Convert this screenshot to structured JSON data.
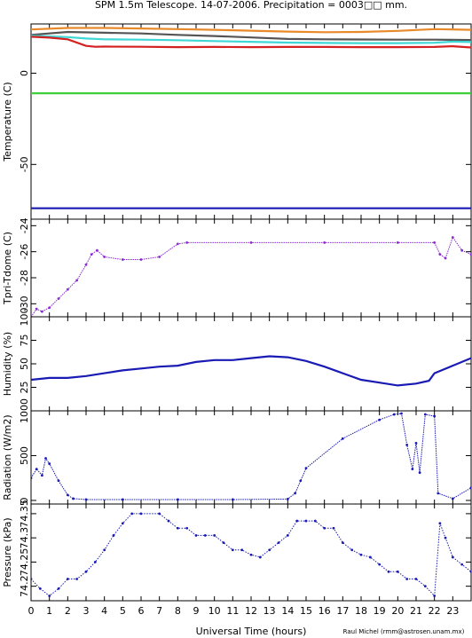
{
  "title": "SPM 1.5m Telescope. 14-07-2006. Precipitation = 0003□□ mm.",
  "credit": "Raul Michel (rmm@astrosen.unam.mx)",
  "colors": {
    "frame": "#000000",
    "orange": "#e8892a",
    "gray": "#555555",
    "cyan": "#3fd6d6",
    "red": "#d42020",
    "green": "#3ccf3c",
    "blue": "#1a1ab4",
    "purple": "#8a2ad0",
    "dots": "#2a2ad8"
  },
  "chart_data": [
    {
      "type": "line",
      "name": "temperature",
      "ylabel": "Temperature (C)",
      "xlim": [
        0,
        24
      ],
      "ylim": [
        -80,
        27
      ],
      "yticks": [
        0,
        -50
      ],
      "series": [
        {
          "color": "orange",
          "x": [
            0,
            2,
            4,
            6,
            8,
            10,
            12,
            14,
            16,
            18,
            20,
            22,
            24
          ],
          "y": [
            24,
            24.8,
            24.8,
            24.5,
            24.2,
            23.8,
            23.3,
            22.8,
            22.5,
            22.6,
            23.2,
            24.2,
            23.8
          ]
        },
        {
          "color": "gray",
          "x": [
            0,
            2,
            4,
            6,
            8,
            10,
            12,
            14,
            16,
            18,
            20,
            22,
            24
          ],
          "y": [
            21,
            22.6,
            22.2,
            21.8,
            21,
            20.4,
            19.6,
            18.8,
            18.6,
            18.5,
            18.4,
            18.4,
            18.2
          ]
        },
        {
          "color": "cyan",
          "x": [
            0,
            1,
            2,
            3,
            4,
            6,
            8,
            10,
            12,
            14,
            16,
            18,
            20,
            22,
            23,
            24
          ],
          "y": [
            20.5,
            20.2,
            19.8,
            19,
            18.6,
            18.4,
            18.1,
            17.6,
            17.2,
            16.8,
            16.6,
            16.5,
            16.5,
            16.7,
            17.3,
            17.1
          ]
        },
        {
          "color": "red",
          "x": [
            0,
            1,
            2,
            3,
            3.5,
            4,
            6,
            8,
            10,
            12,
            14,
            16,
            18,
            20,
            22,
            23,
            24
          ],
          "y": [
            20,
            19.5,
            18.6,
            15,
            14.5,
            14.6,
            14.5,
            14.3,
            14.4,
            14.3,
            14.4,
            14.4,
            14.3,
            14.3,
            14.4,
            14.8,
            14.1
          ]
        },
        {
          "color": "green",
          "x": [
            0,
            24
          ],
          "y": [
            -11,
            -11
          ]
        },
        {
          "color": "blue",
          "x": [
            0,
            24
          ],
          "y": [
            -74,
            -74
          ]
        }
      ]
    },
    {
      "type": "scatter",
      "name": "tpri-tdome",
      "ylabel": "Tpri-Tdome (C)",
      "xlim": [
        0,
        24
      ],
      "ylim": [
        -31,
        -23.5
      ],
      "yticks": [
        -30,
        -28,
        -26,
        -24
      ],
      "series": [
        {
          "color": "purple",
          "x": [
            0,
            0.3,
            0.6,
            1,
            1.5,
            2,
            2.5,
            3,
            3.3,
            3.6,
            4,
            5,
            6,
            7,
            8,
            8.5,
            12,
            16,
            20,
            22,
            22.3,
            22.6,
            23,
            23.5,
            24
          ],
          "y": [
            -31,
            -30.4,
            -30.6,
            -30.3,
            -29.6,
            -28.9,
            -28.2,
            -27.0,
            -26.2,
            -25.9,
            -26.4,
            -26.6,
            -26.6,
            -26.4,
            -25.4,
            -25.3,
            -25.3,
            -25.3,
            -25.3,
            -25.3,
            -26.2,
            -26.5,
            -24.9,
            -25.9,
            -26.2
          ]
        }
      ]
    },
    {
      "type": "line",
      "name": "humidity",
      "ylabel": "Humidity (%)",
      "xlim": [
        0,
        24
      ],
      "ylim": [
        0,
        100
      ],
      "yticks": [
        25,
        50,
        75,
        100
      ],
      "series": [
        {
          "color": "blue",
          "x": [
            0,
            1,
            2,
            3,
            4,
            5,
            6,
            7,
            8,
            9,
            10,
            11,
            12,
            13,
            14,
            15,
            16,
            17,
            18,
            19,
            20,
            21,
            21.7,
            22,
            23,
            24
          ],
          "y": [
            33,
            35,
            35,
            37,
            40,
            43,
            45,
            47,
            48,
            52,
            54,
            54,
            56,
            58,
            57,
            53,
            47,
            40,
            33,
            30,
            27,
            29,
            32,
            40,
            48,
            56
          ]
        }
      ]
    },
    {
      "type": "scatter",
      "name": "radiation",
      "ylabel": "Radiation (W/m2)",
      "xlim": [
        0,
        24
      ],
      "ylim": [
        -40,
        1000
      ],
      "yticks": [
        0,
        500,
        1000
      ],
      "series": [
        {
          "color": "blue",
          "x": [
            0,
            0.3,
            0.6,
            0.8,
            1,
            1.5,
            2,
            2.3,
            3,
            5,
            8,
            11,
            14,
            14.4,
            14.7,
            15,
            17,
            19,
            19.8,
            20.2,
            20.5,
            20.8,
            21,
            21.2,
            21.5,
            22,
            22.2,
            23,
            24
          ],
          "y": [
            250,
            350,
            280,
            470,
            410,
            220,
            60,
            20,
            10,
            10,
            10,
            10,
            15,
            80,
            220,
            360,
            690,
            900,
            960,
            970,
            620,
            350,
            640,
            310,
            960,
            940,
            80,
            20,
            140
          ]
        }
      ]
    },
    {
      "type": "scatter",
      "name": "pressure",
      "ylabel": "Pressure (kPa)",
      "xlim": [
        0,
        24
      ],
      "ylim": [
        74.17,
        74.37
      ],
      "ytick_labels": [
        "74.2",
        "74.25",
        "74.3",
        "74.35"
      ],
      "series": [
        {
          "color": "blue",
          "x": [
            0,
            0.5,
            1,
            1.5,
            2,
            2.5,
            3,
            3.5,
            4,
            4.5,
            5,
            5.5,
            6,
            7,
            7.5,
            8,
            8.5,
            9,
            9.5,
            10,
            10.5,
            11,
            11.5,
            12,
            12.5,
            13,
            13.5,
            14,
            14.5,
            15,
            15.5,
            16,
            16.5,
            17,
            17.5,
            18,
            18.5,
            19,
            19.5,
            20,
            20.5,
            21,
            21.5,
            22,
            22.3,
            22.6,
            23,
            23.5,
            24
          ],
          "y": [
            74.215,
            74.195,
            74.18,
            74.195,
            74.215,
            74.215,
            74.23,
            74.25,
            74.275,
            74.305,
            74.33,
            74.35,
            74.35,
            74.35,
            74.335,
            74.32,
            74.32,
            74.305,
            74.305,
            74.305,
            74.29,
            74.275,
            74.275,
            74.265,
            74.26,
            74.275,
            74.29,
            74.305,
            74.335,
            74.335,
            74.335,
            74.32,
            74.32,
            74.29,
            74.275,
            74.265,
            74.26,
            74.245,
            74.23,
            74.23,
            74.215,
            74.215,
            74.2,
            74.18,
            74.33,
            74.3,
            74.26,
            74.245,
            74.23
          ]
        }
      ]
    }
  ],
  "xaxis": {
    "label": "Universal Time (hours)",
    "ticks": [
      0,
      1,
      2,
      3,
      4,
      5,
      6,
      7,
      8,
      9,
      10,
      11,
      12,
      13,
      14,
      15,
      16,
      17,
      18,
      19,
      20,
      21,
      22,
      23
    ]
  }
}
